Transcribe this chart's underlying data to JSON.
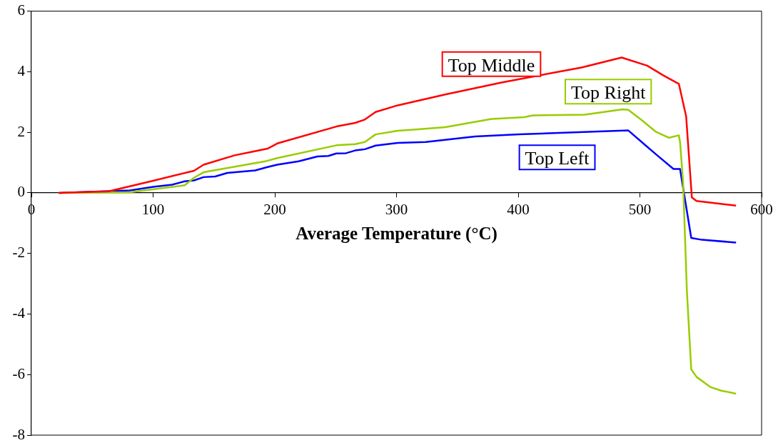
{
  "chart_data": {
    "type": "line",
    "xlabel": "Average Temperature (°C)",
    "xlim": [
      0,
      600
    ],
    "xticks": [
      0,
      100,
      200,
      300,
      400,
      500,
      600
    ],
    "ylim": [
      -8,
      6
    ],
    "yticks": [
      -8,
      -6,
      -4,
      -2,
      0,
      2,
      4,
      6
    ],
    "grid": false,
    "legend": false,
    "marker": "none",
    "line_style": "solid",
    "series": [
      {
        "name": "Top Middle",
        "color": "#ff0000",
        "x": [
          22.6,
          40,
          63.5,
          79,
          100,
          133.6,
          141.5,
          167,
          184,
          194,
          202,
          250.6,
          266,
          274,
          282.8,
          301,
          340,
          387,
          452,
          485,
          506,
          519.6,
          532,
          538,
          542.7,
          546.5,
          579
        ],
        "values": [
          0,
          0.02,
          0.05,
          0.2,
          0.4,
          0.73,
          0.93,
          1.24,
          1.38,
          1.46,
          1.63,
          2.19,
          2.31,
          2.42,
          2.67,
          2.89,
          3.25,
          3.65,
          4.14,
          4.47,
          4.2,
          3.87,
          3.6,
          2.53,
          -0.15,
          -0.27,
          -0.42
        ]
      },
      {
        "name": "Top Right",
        "color": "#99cc00",
        "x": [
          22.6,
          81,
          126,
          133.6,
          141.5,
          193,
          202,
          250.6,
          266,
          274,
          282.8,
          301,
          317.5,
          340,
          378,
          405,
          412,
          454.6,
          486,
          490.5,
          501.6,
          513,
          524,
          532,
          533,
          535.5,
          538.6,
          542.2,
          546.6,
          557.8,
          566.8,
          579
        ],
        "values": [
          0,
          0.02,
          0.25,
          0.5,
          0.68,
          1.05,
          1.15,
          1.57,
          1.61,
          1.68,
          1.93,
          2.05,
          2.1,
          2.17,
          2.44,
          2.5,
          2.56,
          2.58,
          2.76,
          2.74,
          2.4,
          2.02,
          1.82,
          1.9,
          1.68,
          0.35,
          -3.23,
          -5.83,
          -6.08,
          -6.41,
          -6.53,
          -6.63
        ]
      },
      {
        "name": "Top Left",
        "color": "#0000ff",
        "x": [
          22.6,
          81,
          100,
          115.6,
          126,
          133.6,
          141.5,
          151,
          161,
          184,
          193,
          202,
          219.6,
          235,
          244,
          250.6,
          258.5,
          266,
          274,
          282.8,
          301,
          324,
          364.6,
          400.6,
          445.5,
          490.5,
          504,
          513,
          527.6,
          533,
          542.2,
          551,
          579
        ],
        "values": [
          0,
          0.08,
          0.2,
          0.27,
          0.38,
          0.41,
          0.52,
          0.54,
          0.66,
          0.74,
          0.84,
          0.93,
          1.04,
          1.2,
          1.22,
          1.3,
          1.31,
          1.4,
          1.44,
          1.56,
          1.65,
          1.68,
          1.86,
          1.93,
          2.0,
          2.06,
          1.59,
          1.28,
          0.79,
          0.79,
          -1.49,
          -1.55,
          -1.64
        ]
      }
    ]
  }
}
